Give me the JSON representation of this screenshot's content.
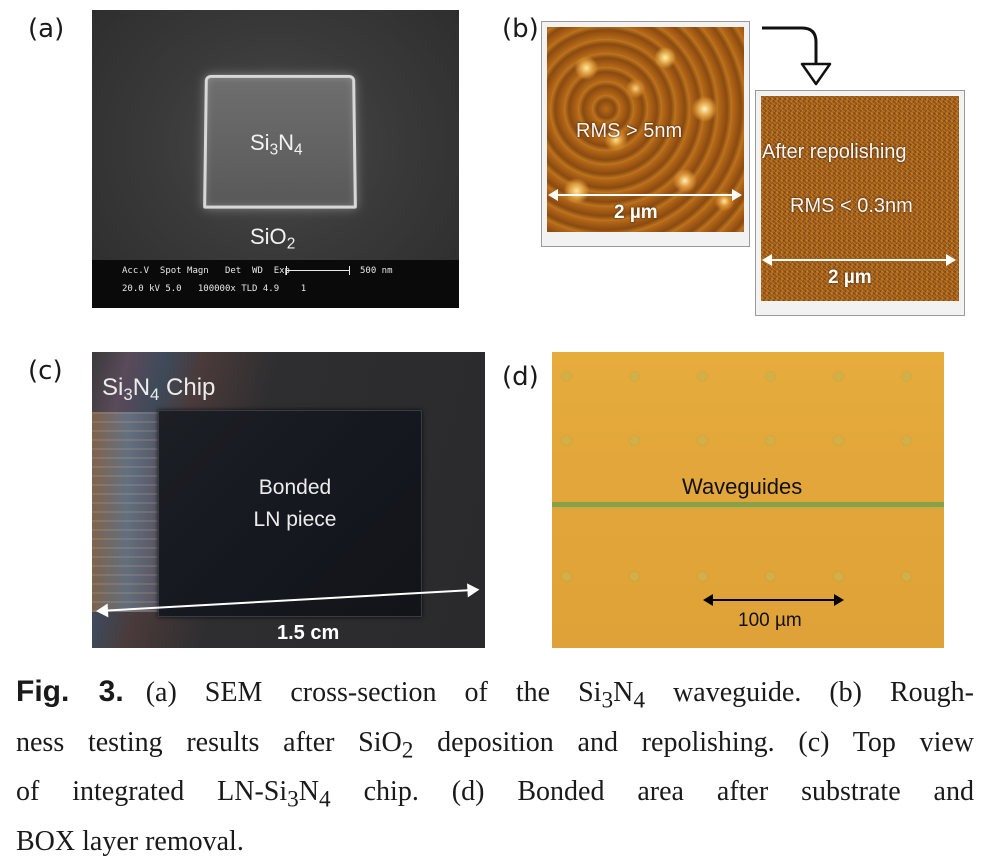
{
  "panels": {
    "a": {
      "label": "(a)",
      "waveguide_label": "Si",
      "waveguide_sub1": "3",
      "waveguide_mid": "N",
      "waveguide_sub2": "4",
      "cladding_label": "SiO",
      "cladding_sub": "2",
      "sem_bar_line1": "Acc.V  Spot Magn   Det  WD  Exp",
      "sem_bar_line2": "20.0 kV 5.0   100000x TLD 4.9    1",
      "scale_text": "500 nm"
    },
    "b": {
      "label": "(b)",
      "before_text": "RMS > 5nm",
      "before_scale": "2 µm",
      "after_title": "After repolishing",
      "after_text": "RMS < 0.3nm",
      "after_scale": "2 µm"
    },
    "c": {
      "label": "(c)",
      "chip_pre": "Si",
      "chip_sub1": "3",
      "chip_mid": "N",
      "chip_sub2": "4",
      "chip_post": " Chip",
      "bonded_line1": "Bonded",
      "bonded_line2": "LN piece",
      "scale": "1.5 cm"
    },
    "d": {
      "label": "(d)",
      "waveguides": "Waveguides",
      "scale": "100 µm"
    }
  },
  "caption": {
    "fig": "Fig. 3.",
    "p1": "(a) SEM cross-section of the Si",
    "s1": "3",
    "p2": "N",
    "s2": "4",
    "p3": " waveguide. (b) Rough-",
    "p4": "ness testing results after SiO",
    "s3": "2",
    "p5": " deposition and repolishing. (c) Top view",
    "p6": "of integrated LN-Si",
    "s4": "3",
    "p7": "N",
    "s5": "4",
    "p8": " chip. (d) Bonded area after substrate and",
    "p9": "BOX layer removal."
  }
}
